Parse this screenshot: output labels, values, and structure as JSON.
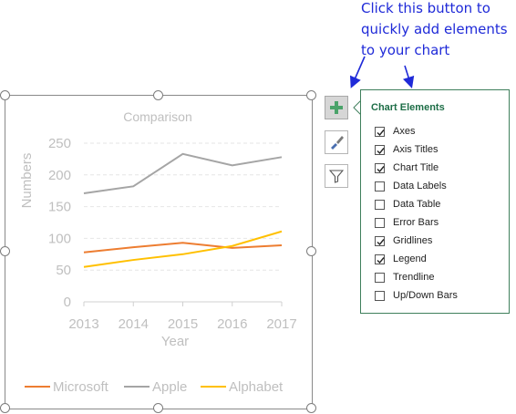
{
  "callout": {
    "lines": [
      "Click this button to",
      "quickly add elements",
      "to your chart"
    ]
  },
  "colors": {
    "callout_text": "#1f2ad8",
    "panel_title": "#1e6e47",
    "panel_border": "#3f7f5c",
    "add_icon": "#4aa36a"
  },
  "side_buttons": {
    "add": "plus-icon",
    "style": "brush-icon",
    "filter": "filter-icon"
  },
  "panel": {
    "title": "Chart Elements",
    "items": [
      {
        "label": "Axes",
        "checked": true
      },
      {
        "label": "Axis Titles",
        "checked": true
      },
      {
        "label": "Chart Title",
        "checked": true
      },
      {
        "label": "Data Labels",
        "checked": false
      },
      {
        "label": "Data Table",
        "checked": false
      },
      {
        "label": "Error Bars",
        "checked": false
      },
      {
        "label": "Gridlines",
        "checked": true
      },
      {
        "label": "Legend",
        "checked": true
      },
      {
        "label": "Trendline",
        "checked": false
      },
      {
        "label": "Up/Down Bars",
        "checked": false
      }
    ]
  },
  "chart_data": {
    "type": "line",
    "title": "Comparison",
    "xlabel": "Year",
    "ylabel": "Numbers",
    "x": [
      "2013",
      "2014",
      "2015",
      "2016",
      "2017"
    ],
    "ylim": [
      0,
      250
    ],
    "yticks": [
      "0",
      "50",
      "100",
      "150",
      "200",
      "250"
    ],
    "grid": true,
    "legend": "bottom",
    "series": [
      {
        "name": "Microsoft",
        "color": "#ed7d31",
        "values": [
          78,
          86,
          93,
          85,
          89
        ]
      },
      {
        "name": "Apple",
        "color": "#a5a5a5",
        "values": [
          171,
          182,
          233,
          215,
          228
        ]
      },
      {
        "name": "Alphabet",
        "color": "#ffc000",
        "values": [
          55,
          66,
          75,
          88,
          111
        ]
      }
    ]
  }
}
